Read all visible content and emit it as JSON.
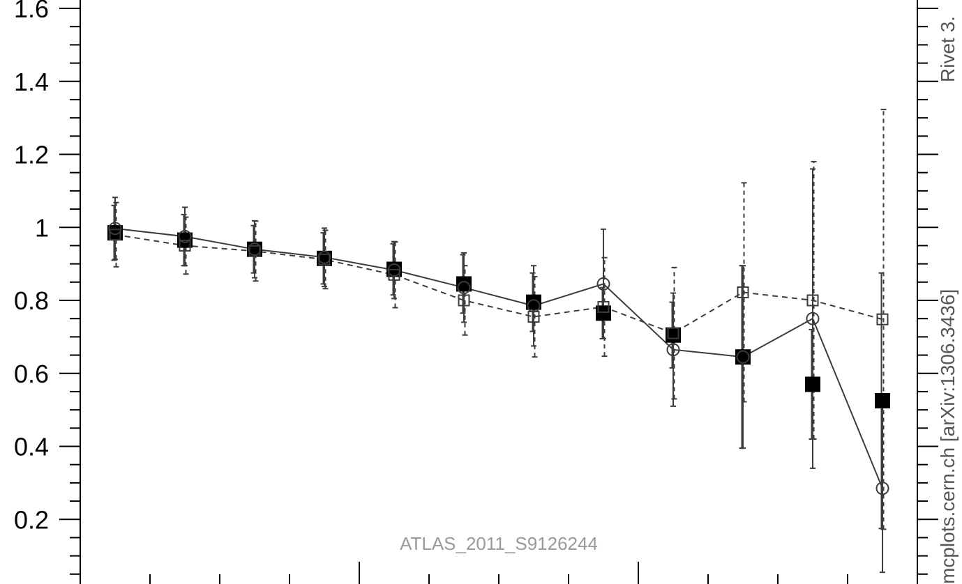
{
  "chart_data": {
    "type": "line",
    "title": "",
    "xlabel": "",
    "ylabel": "",
    "ylim": [
      0,
      1.6
    ],
    "y_ticks": [
      "0.2",
      "0.4",
      "0.6",
      "0.8",
      "1",
      "1.2",
      "1.4",
      "1.6"
    ],
    "x_index": [
      1,
      2,
      3,
      4,
      5,
      6,
      7,
      8,
      9,
      10,
      11,
      12
    ],
    "series": [
      {
        "marker": "filled-square",
        "values": [
          0.985,
          0.965,
          0.94,
          0.915,
          0.885,
          0.845,
          0.795,
          0.765,
          0.705,
          0.645,
          0.57,
          0.525
        ],
        "errors": [
          0.075,
          0.07,
          0.065,
          0.07,
          0.07,
          0.08,
          0.08,
          0.07,
          0.09,
          0.25,
          0.15,
          0.35
        ]
      },
      {
        "marker": "open-circle",
        "line": "solid",
        "values": [
          0.997,
          0.975,
          0.94,
          0.918,
          0.883,
          0.835,
          0.785,
          0.845,
          0.665,
          0.645,
          0.75,
          0.285
        ],
        "errors": [
          0.085,
          0.08,
          0.078,
          0.08,
          0.078,
          0.095,
          0.11,
          0.15,
          0.155,
          0.25,
          0.41,
          0.23
        ]
      },
      {
        "marker": "open-square",
        "line": "dashed",
        "values": [
          0.98,
          0.95,
          0.935,
          0.912,
          0.87,
          0.8,
          0.755,
          0.782,
          0.71,
          0.822,
          0.8,
          0.748
        ],
        "errors": [
          0.088,
          0.078,
          0.082,
          0.08,
          0.09,
          0.095,
          0.11,
          0.135,
          0.18,
          0.3,
          0.38,
          0.575
        ]
      }
    ],
    "annotation": "ATLAS_2011_S9126244",
    "side_label": "Rivet 3.",
    "side_label_2": "mcplots.cern.ch [arXiv:1306.3436]",
    "colors": {
      "line": "#3c3c3c",
      "filled": "#000000",
      "axis": "#000000",
      "watermark": "#9a9a9a"
    }
  }
}
